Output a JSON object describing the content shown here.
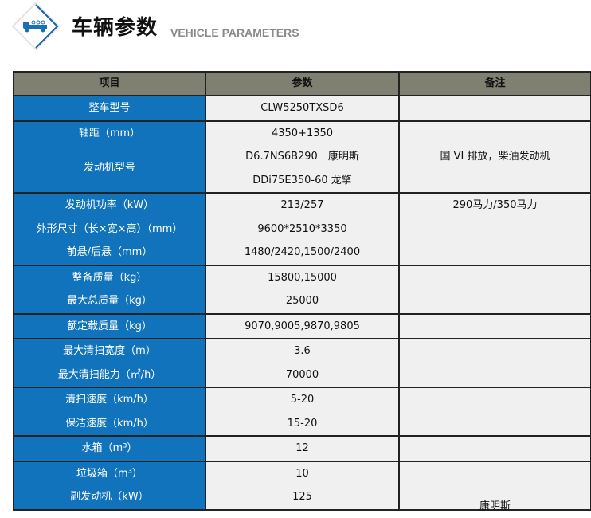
{
  "header": {
    "title": "车辆参数",
    "subtitle": "VEHICLE PARAMETERS",
    "logo_icon": "truck-icon"
  },
  "colors": {
    "label_bg": "#1173bb",
    "header_bg": "#7f7f72",
    "cell_bg": "#f0f0f0"
  },
  "table": {
    "columns": [
      "项目",
      "参数",
      "备注"
    ],
    "groups": [
      {
        "items": [
          {
            "label": "整车型号",
            "value": "CLW5250TXSD6"
          }
        ],
        "remark": ""
      },
      {
        "items": [
          {
            "label": "轴距（mm）",
            "value": "4350+1350"
          },
          {
            "label": "",
            "value": "D6.7NS6B290　康明斯"
          },
          {
            "label": "发动机型号",
            "value": "DDi75E350-60 龙擎"
          }
        ],
        "remark": "国 VI 排放，柴油发动机"
      },
      {
        "items": [
          {
            "label": "发动机功率（kW）",
            "value": "213/257"
          },
          {
            "label": "外形尺寸（长×宽×高）（mm）",
            "value": "9600*2510*3350"
          },
          {
            "label": "前悬/后悬（mm）",
            "value": "1480/2420,1500/2400"
          }
        ],
        "remark": "290马力/350马力"
      },
      {
        "items": [
          {
            "label": "整备质量（kg）",
            "value": "15800,15000"
          },
          {
            "label": "最大总质量（kg）",
            "value": "25000"
          }
        ],
        "remark": ""
      },
      {
        "items": [
          {
            "label": "额定载质量（kg）",
            "value": "9070,9005,9870,9805"
          }
        ],
        "remark": ""
      },
      {
        "items": [
          {
            "label": "最大清扫宽度（m）",
            "value": "3.6"
          },
          {
            "label": "最大清扫能力（㎡/h）",
            "value": "70000"
          }
        ],
        "remark": ""
      },
      {
        "items": [
          {
            "label": "清扫速度（km/h）",
            "value": "5-20"
          },
          {
            "label": "保洁速度（km/h）",
            "value": "15-20"
          }
        ],
        "remark": ""
      },
      {
        "items": [
          {
            "label": "水箱（m³）",
            "value": "12"
          }
        ],
        "remark": ""
      },
      {
        "items": [
          {
            "label": "垃圾箱（m³）",
            "value": "10"
          },
          {
            "label": "副发动机（kW）",
            "value": "125"
          }
        ],
        "remark": "康明斯"
      }
    ]
  }
}
